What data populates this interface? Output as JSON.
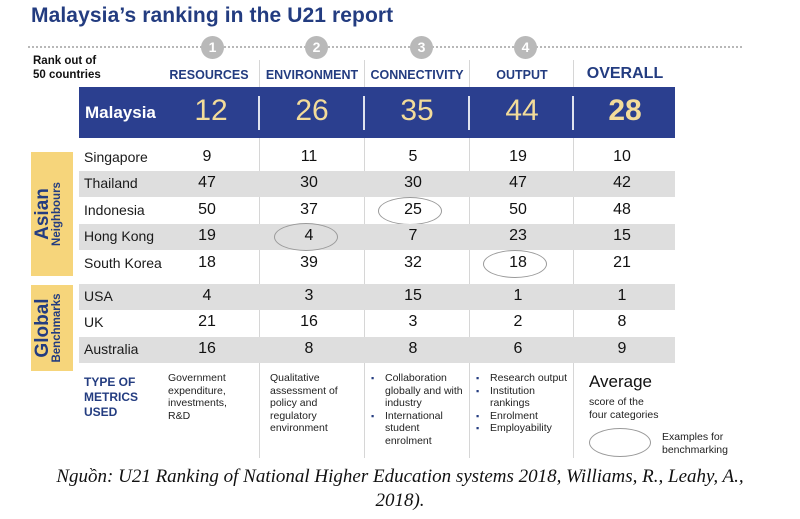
{
  "title": "Malaysia’s ranking in the U21 report",
  "rank_label": [
    "Rank out of",
    "50 countries"
  ],
  "steps": [
    "1",
    "2",
    "3",
    "4"
  ],
  "columns": [
    "RESOURCES",
    "ENVIRONMENT",
    "CONNECTIVITY",
    "OUTPUT",
    "OVERALL"
  ],
  "malaysia": {
    "name": "Malaysia",
    "values": [
      "12",
      "26",
      "35",
      "44",
      "28"
    ]
  },
  "groups": [
    {
      "label": "Asian",
      "sublabel": "Neighbours"
    },
    {
      "label": "Global",
      "sublabel": "Benchmarks"
    }
  ],
  "rows": [
    {
      "name": "Singapore",
      "values": [
        "9",
        "11",
        "5",
        "19",
        "10"
      ]
    },
    {
      "name": "Thailand",
      "values": [
        "47",
        "30",
        "30",
        "47",
        "42"
      ]
    },
    {
      "name": "Indonesia",
      "values": [
        "50",
        "37",
        "25",
        "50",
        "48"
      ]
    },
    {
      "name": "Hong Kong",
      "values": [
        "19",
        "4",
        "7",
        "23",
        "15"
      ]
    },
    {
      "name": "South Korea",
      "values": [
        "18",
        "39",
        "32",
        "18",
        "21"
      ]
    },
    {
      "name": "USA",
      "values": [
        "4",
        "3",
        "15",
        "1",
        "1"
      ]
    },
    {
      "name": "UK",
      "values": [
        "21",
        "16",
        "3",
        "2",
        "8"
      ]
    },
    {
      "name": "Australia",
      "values": [
        "16",
        "8",
        "8",
        "6",
        "9"
      ]
    }
  ],
  "highlighted_examples": [
    {
      "country": "Hong Kong",
      "column": "ENVIRONMENT",
      "value": "4"
    },
    {
      "country": "Indonesia",
      "column": "CONNECTIVITY",
      "value": "25"
    },
    {
      "country": "South Korea",
      "column": "OUTPUT",
      "value": "18"
    }
  ],
  "metrics": {
    "label": [
      "TYPE OF",
      "METRICS",
      "USED"
    ],
    "resources": [
      "Government",
      "expenditure,",
      "investments,",
      "R&D"
    ],
    "environment": [
      "Qualitative",
      "assessment of",
      "policy and",
      "regulatory",
      "environment"
    ],
    "connectivity": [
      "Collaboration globally and with industry",
      "International student enrolment"
    ],
    "output": [
      "Research output",
      "Institution rankings",
      "Enrolment",
      "Employability"
    ],
    "overall_title": "Average",
    "overall_sub": [
      "score of the",
      "four categories"
    ]
  },
  "legend": {
    "text": [
      "Examples for",
      "benchmarking"
    ]
  },
  "caption": [
    "Nguồn: U21 Ranking of National Higher Education systems 2018, Williams, R., Leahy, A.,",
    "2018)."
  ],
  "colors": {
    "navy": "#233c80",
    "band": "#2b3f8f",
    "band_value": "#f3dc9a",
    "group_box": "#f6d57b",
    "row_shade": "#dedede"
  },
  "chart_data": {
    "type": "table",
    "title": "Malaysia’s ranking in the U21 report",
    "subtitle": "Rank out of 50 countries",
    "columns": [
      "Country",
      "RESOURCES",
      "ENVIRONMENT",
      "CONNECTIVITY",
      "OUTPUT",
      "OVERALL"
    ],
    "rows": [
      [
        "Malaysia",
        12,
        26,
        35,
        44,
        28
      ],
      [
        "Singapore",
        9,
        11,
        5,
        19,
        10
      ],
      [
        "Thailand",
        47,
        30,
        30,
        47,
        42
      ],
      [
        "Indonesia",
        50,
        37,
        25,
        50,
        48
      ],
      [
        "Hong Kong",
        19,
        4,
        7,
        23,
        15
      ],
      [
        "South Korea",
        18,
        39,
        32,
        18,
        21
      ],
      [
        "USA",
        4,
        3,
        15,
        1,
        1
      ],
      [
        "UK",
        21,
        16,
        3,
        2,
        8
      ],
      [
        "Australia",
        16,
        8,
        8,
        6,
        9
      ]
    ],
    "row_groups": {
      "Asian Neighbours": [
        "Singapore",
        "Thailand",
        "Indonesia",
        "Hong Kong",
        "South Korea"
      ],
      "Global Benchmarks": [
        "USA",
        "UK",
        "Australia"
      ]
    }
  }
}
